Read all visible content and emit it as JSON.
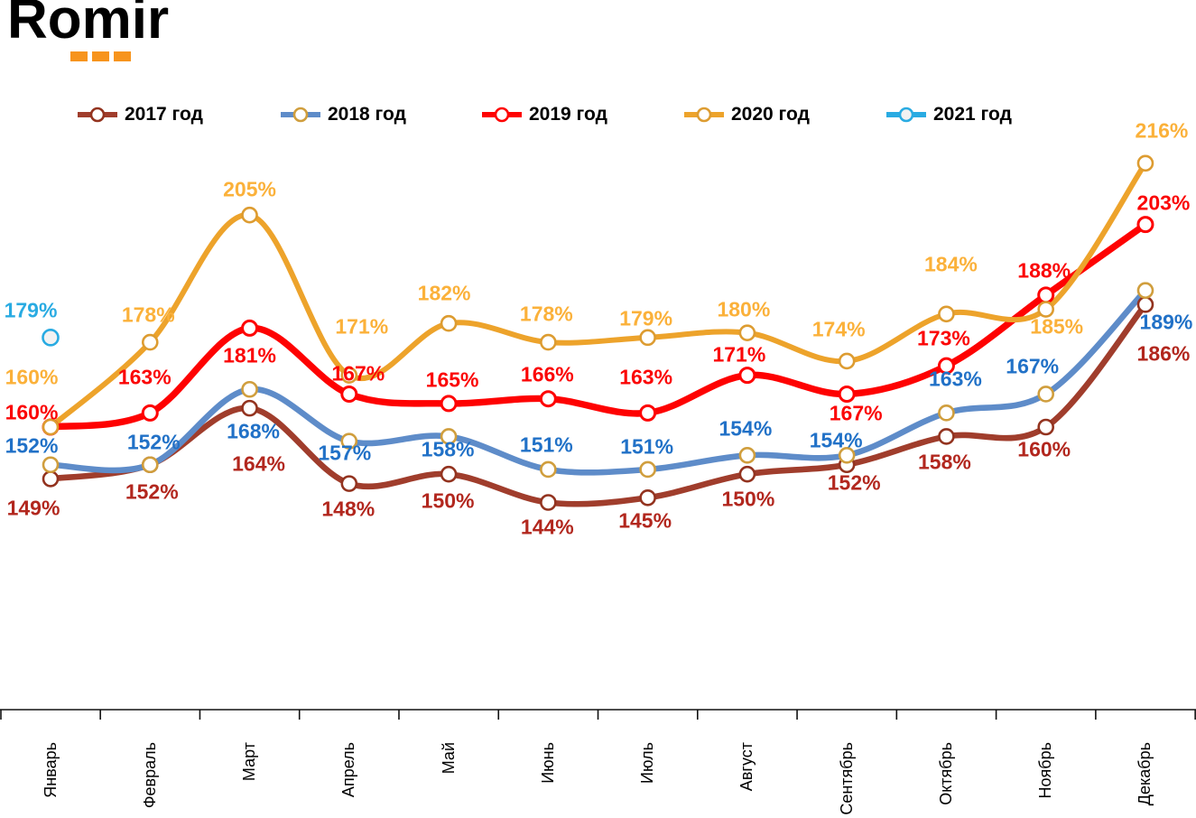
{
  "logo": {
    "text": "Romir",
    "dot_color": "#F7941D",
    "text_color": "#000000"
  },
  "chart_data": {
    "type": "line",
    "title": "",
    "unit": "%",
    "categories": [
      "Январь",
      "Февраль",
      "Март",
      "Апрель",
      "Май",
      "Июнь",
      "Июль",
      "Август",
      "Сентябрь",
      "Октябрь",
      "Ноябрь",
      "Декабрь"
    ],
    "legend_position": "top",
    "grid": false,
    "y_axis_visible": false,
    "ylim": [
      140,
      220
    ],
    "x_axis": {
      "tick_marks": 13,
      "labels_rotated_degrees": 90,
      "axis_color": "#111111"
    },
    "series": [
      {
        "name": "2017 год",
        "color": "#A03D2C",
        "marker_ring": "#93331F",
        "marker_fill": "#FFFFFF",
        "label_color": "#B2271E",
        "line_width": 6.6,
        "values": [
          149,
          152,
          164,
          148,
          150,
          144,
          145,
          150,
          152,
          158,
          160,
          186
        ]
      },
      {
        "name": "2018 год",
        "color": "#5E8CC9",
        "marker_ring": "#D09E3D",
        "marker_fill": "#FFFFFF",
        "label_color": "#2171C7",
        "line_width": 6.6,
        "values": [
          152,
          152,
          168,
          157,
          158,
          151,
          151,
          154,
          154,
          163,
          167,
          189
        ]
      },
      {
        "name": "2019 год",
        "color": "#FE0202",
        "marker_ring": "#FE0202",
        "marker_fill": "#FFFFFF",
        "label_color": "#FB0505",
        "line_width": 7.4,
        "values": [
          160,
          163,
          181,
          167,
          165,
          166,
          163,
          171,
          167,
          173,
          188,
          203
        ]
      },
      {
        "name": "2020 год",
        "color": "#EDA32B",
        "marker_ring": "#DD9C31",
        "marker_fill": "#FFFFFF",
        "label_color": "#FBB13A",
        "line_width": 6,
        "values": [
          160,
          178,
          205,
          171,
          182,
          178,
          179,
          180,
          174,
          184,
          185,
          216
        ]
      },
      {
        "name": "2021 год",
        "color": "#29ABE2",
        "marker_ring": "#29ABE2",
        "marker_fill": "#F2F2F2",
        "label_color": "#29ABE2",
        "line_width": 6,
        "values": [
          179,
          null,
          null,
          null,
          null,
          null,
          null,
          null,
          null,
          null,
          null,
          null
        ]
      }
    ],
    "label_offsets": [
      [
        [
          -19,
          33
        ],
        [
          2,
          30
        ],
        [
          10,
          62
        ],
        [
          -1,
          28
        ],
        [
          -1,
          30
        ],
        [
          -1,
          28
        ],
        [
          -3,
          26
        ],
        [
          1,
          28
        ],
        [
          8,
          20
        ],
        [
          -2,
          29
        ],
        [
          -2,
          25
        ],
        [
          20,
          55
        ]
      ],
      [
        [
          -21,
          -21
        ],
        [
          4,
          -25
        ],
        [
          4,
          47
        ],
        [
          -5,
          13
        ],
        [
          -1,
          15
        ],
        [
          -2,
          -27
        ],
        [
          -1,
          -25
        ],
        [
          -2,
          -29
        ],
        [
          -12,
          -16
        ],
        [
          10,
          -37
        ],
        [
          -15,
          -30
        ],
        [
          23,
          35
        ]
      ],
      [
        [
          -21,
          -16
        ],
        [
          -6,
          -39
        ],
        [
          0,
          31
        ],
        [
          10,
          -22
        ],
        [
          4,
          -26
        ],
        [
          -1,
          -27
        ],
        [
          -2,
          -39
        ],
        [
          -9,
          -23
        ],
        [
          10,
          22
        ],
        [
          -3,
          -30
        ],
        [
          -2,
          -27
        ],
        [
          20,
          -24
        ]
      ],
      [
        [
          -21,
          -55
        ],
        [
          -2,
          -30
        ],
        [
          0,
          -28
        ],
        [
          14,
          -54
        ],
        [
          -5,
          -33
        ],
        [
          -2,
          -31
        ],
        [
          -2,
          -21
        ],
        [
          -4,
          -26
        ],
        [
          -9,
          -35
        ],
        [
          5,
          -55
        ],
        [
          12,
          19
        ],
        [
          18,
          -36
        ]
      ],
      [
        [
          -22,
          -30
        ]
      ]
    ]
  }
}
